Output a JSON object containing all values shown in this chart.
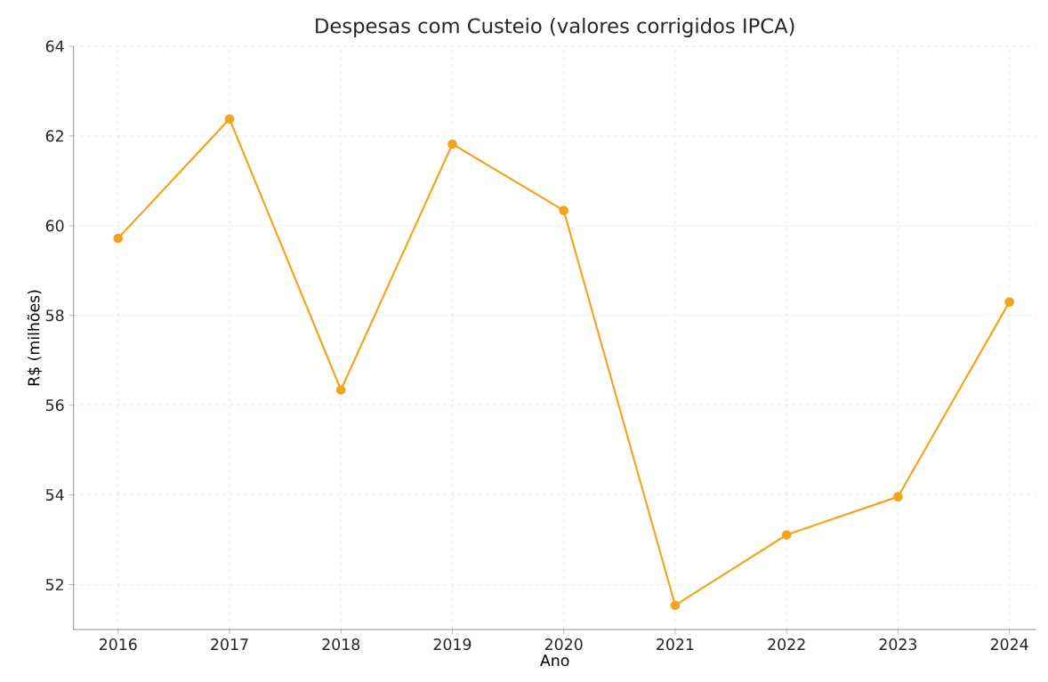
{
  "chart_data": {
    "type": "line",
    "title": "Despesas com Custeio (valores corrigidos IPCA)",
    "xlabel": "Ano",
    "ylabel": "R$ (milhões)",
    "x": [
      2016,
      2017,
      2018,
      2019,
      2020,
      2021,
      2022,
      2023,
      2024
    ],
    "series": [
      {
        "color": "#f5a31c",
        "values": [
          59.72,
          62.38,
          56.34,
          61.82,
          60.34,
          51.54,
          53.11,
          53.96,
          58.3
        ]
      }
    ],
    "xlim": [
      2015.6,
      2024.24
    ],
    "ylim": [
      51,
      64
    ],
    "xticks": [
      2016,
      2017,
      2018,
      2019,
      2020,
      2021,
      2022,
      2023,
      2024
    ],
    "yticks": [
      52,
      54,
      56,
      58,
      60,
      62,
      64
    ],
    "grid": true,
    "marker": "circle",
    "line_style": "solid"
  }
}
